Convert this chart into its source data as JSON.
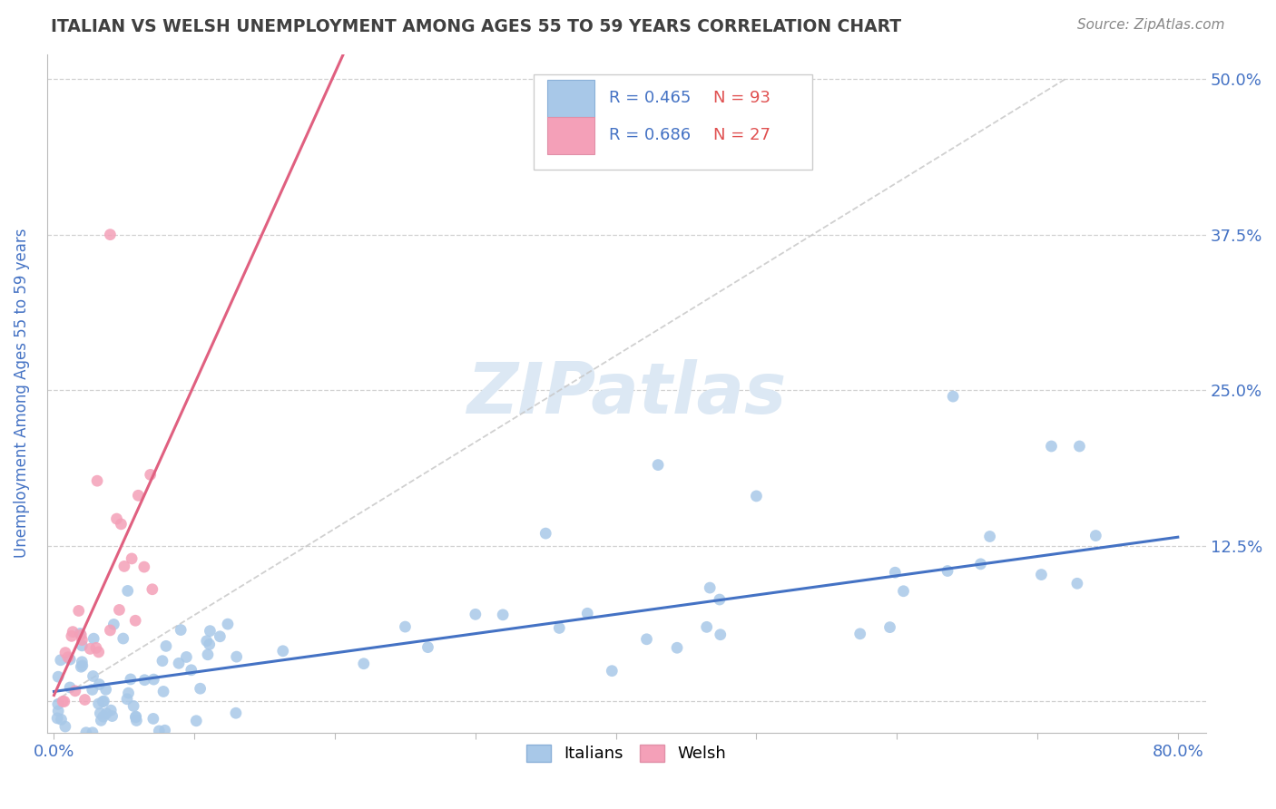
{
  "title": "ITALIAN VS WELSH UNEMPLOYMENT AMONG AGES 55 TO 59 YEARS CORRELATION CHART",
  "source": "Source: ZipAtlas.com",
  "ylabel": "Unemployment Among Ages 55 to 59 years",
  "xlim": [
    -0.005,
    0.82
  ],
  "ylim": [
    -0.025,
    0.52
  ],
  "yticks": [
    0.0,
    0.125,
    0.25,
    0.375,
    0.5
  ],
  "ytick_labels": [
    "",
    "12.5%",
    "25.0%",
    "37.5%",
    "50.0%"
  ],
  "xticks": [
    0.0,
    0.1,
    0.2,
    0.3,
    0.4,
    0.5,
    0.6,
    0.7,
    0.8
  ],
  "xtick_labels": [
    "0.0%",
    "",
    "",
    "",
    "",
    "",
    "",
    "",
    "80.0%"
  ],
  "italian_R": 0.465,
  "italian_N": 93,
  "welsh_R": 0.686,
  "welsh_N": 27,
  "italian_color": "#a8c8e8",
  "welsh_color": "#f4a0b8",
  "italian_line_color": "#4472c4",
  "welsh_line_color": "#e06080",
  "diag_line_color": "#c8c8c8",
  "background_color": "#ffffff",
  "grid_color": "#d0d0d0",
  "title_color": "#404040",
  "ylabel_color": "#4472c4",
  "tick_label_color": "#4472c4",
  "watermark_color": "#dce8f4",
  "legend_R_color": "#4472c4",
  "legend_N_color": "#e05050",
  "source_color": "#888888"
}
